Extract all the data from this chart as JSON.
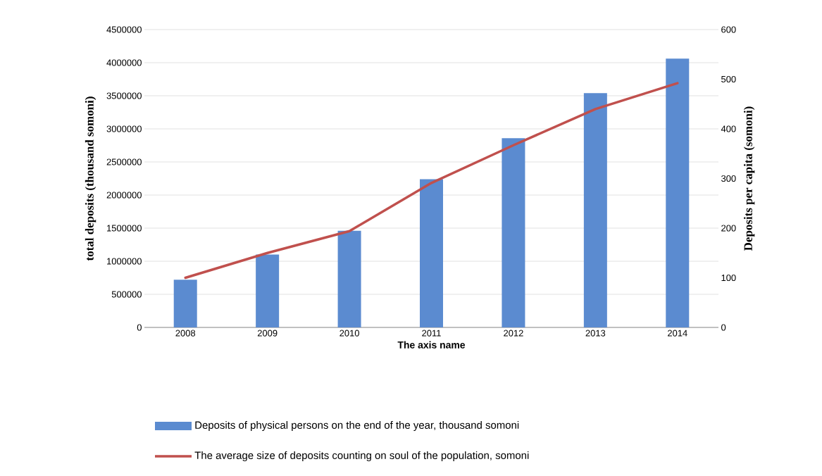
{
  "chart_data": {
    "type": "bar",
    "xlabel": "The axis name",
    "ylabel": "total deposits  (thousand somoni)",
    "y2label": "Deposits per capita (somoni)",
    "categories": [
      "2008",
      "2009",
      "2010",
      "2011",
      "2012",
      "2013",
      "2014"
    ],
    "series": [
      {
        "name": "Deposits of physical persons on the end of the year, thousand somoni",
        "color": "#5b8bd0",
        "values": [
          720000,
          1100000,
          1460000,
          2240000,
          2860000,
          3540000,
          4060000
        ]
      },
      {
        "name": "The average size of deposits counting on soul of the population, somoni",
        "type": "line",
        "axis": "y2",
        "color": "#c0504d",
        "values": [
          100,
          150,
          194,
          291,
          367,
          440,
          492
        ]
      }
    ],
    "ylim": [
      0,
      4500000
    ],
    "yticks": [
      0,
      500000,
      1000000,
      1500000,
      2000000,
      2500000,
      3000000,
      3500000,
      4000000,
      4500000
    ],
    "y2lim": [
      0,
      600
    ],
    "y2ticks": [
      0,
      100,
      200,
      300,
      400,
      500,
      600
    ],
    "grid": "y",
    "legend": "bottom"
  }
}
